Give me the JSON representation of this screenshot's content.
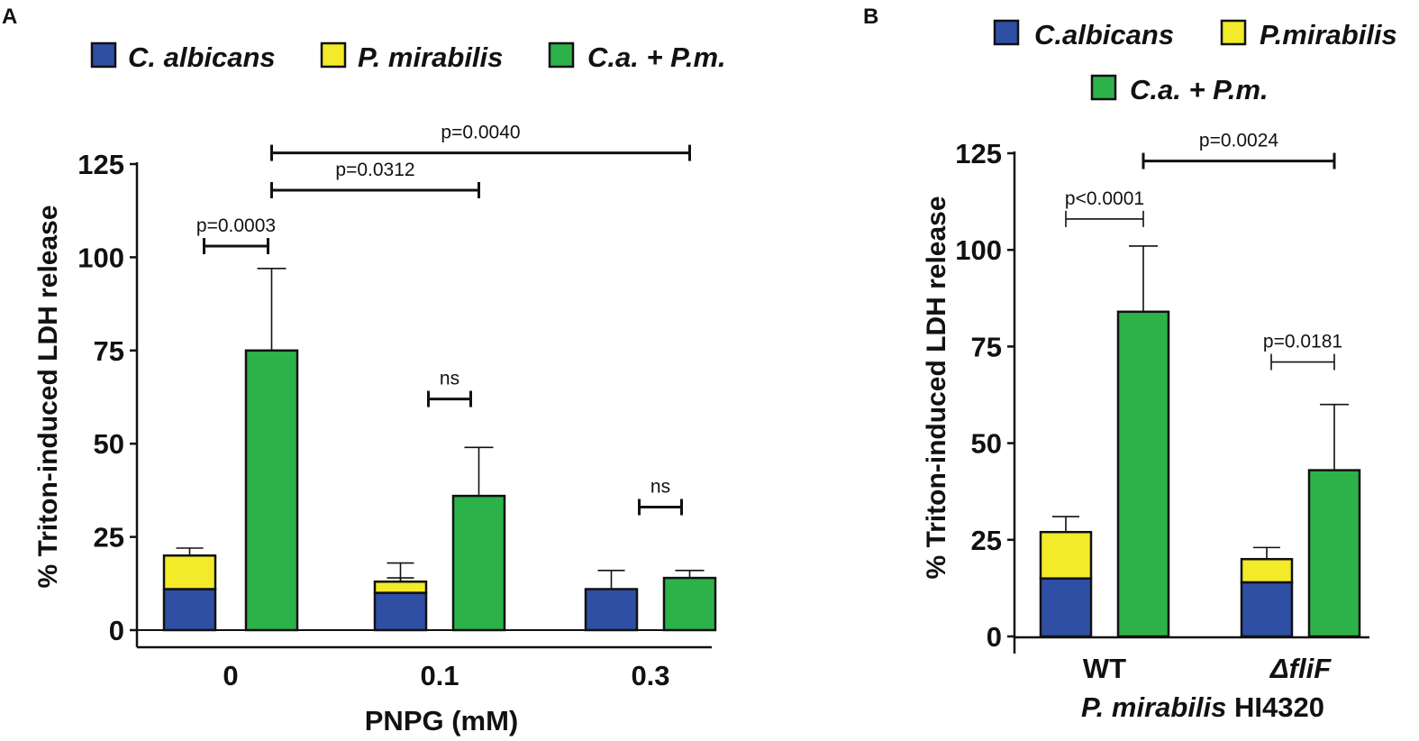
{
  "chart_data": [
    {
      "panel": "A",
      "type": "bar",
      "subtype": "stacked + grouped",
      "xlabel": "PNPG (mM)",
      "ylabel": "% Triton-induced LDH release",
      "ylim": [
        0,
        125
      ],
      "yticks": [
        "0",
        "25",
        "50",
        "75",
        "100",
        "125"
      ],
      "categories": [
        "0",
        "0.1",
        "0.3"
      ],
      "legend": [
        {
          "label": "C. albicans",
          "color": "#2e4fa3"
        },
        {
          "label": "P. mirabilis",
          "color": "#f3ea2a"
        },
        {
          "label": "C.a. + P.m.",
          "color": "#2db24a"
        }
      ],
      "stacked": {
        "series": [
          {
            "name": "C. albicans",
            "color": "#2e4fa3",
            "values": [
              11,
              10,
              11
            ],
            "errors": [
              8,
              8,
              5
            ]
          },
          {
            "name": "P. mirabilis",
            "color": "#f3ea2a",
            "values": [
              9,
              3,
              0
            ],
            "errors": [
              2,
              1,
              0
            ]
          }
        ]
      },
      "combined": {
        "name": "C.a. + P.m.",
        "color": "#2db24a",
        "values": [
          75,
          36,
          14
        ],
        "errors": [
          22,
          13,
          2
        ]
      },
      "annotations": [
        {
          "text": "p=0.0003",
          "from": "stack-0",
          "to": "combo-0",
          "y": 103
        },
        {
          "text": "p=0.0312",
          "from": "combo-0",
          "to": "combo-1",
          "y": 118
        },
        {
          "text": "p=0.0040",
          "from": "combo-0",
          "to": "combo-2",
          "y": 128
        },
        {
          "text": "ns",
          "from": "stack-1",
          "to": "combo-1",
          "y": 62
        },
        {
          "text": "ns",
          "from": "stack-2",
          "to": "combo-2",
          "y": 33
        }
      ]
    },
    {
      "panel": "B",
      "type": "bar",
      "subtype": "stacked + grouped",
      "title": "P. mirabilis HI4320",
      "ylabel": "% Triton-induced LDH release",
      "ylim": [
        0,
        125
      ],
      "yticks": [
        "0",
        "25",
        "50",
        "75",
        "100",
        "125"
      ],
      "categories": [
        "WT",
        "ΔfliF"
      ],
      "xlabel_italic": "P. mirabilis",
      "xlabel_plain": " HI4320",
      "legend": [
        {
          "label": "C.albicans",
          "color": "#2e4fa3"
        },
        {
          "label": "P.mirabilis",
          "color": "#f3ea2a"
        },
        {
          "label": "C.a. + P.m.",
          "color": "#2db24a"
        }
      ],
      "stacked": {
        "series": [
          {
            "name": "C.albicans",
            "color": "#2e4fa3",
            "values": [
              15,
              14
            ],
            "errors": [
              5,
              3
            ]
          },
          {
            "name": "P.mirabilis",
            "color": "#f3ea2a",
            "values": [
              12,
              6
            ],
            "errors": [
              4,
              3
            ]
          }
        ]
      },
      "combined": {
        "name": "C.a. + P.m.",
        "color": "#2db24a",
        "values": [
          84,
          43
        ],
        "errors": [
          17,
          17
        ]
      },
      "annotations": [
        {
          "text": "p<0.0001",
          "from": "stack-0",
          "to": "combo-0",
          "y": 108
        },
        {
          "text": "p=0.0024",
          "from": "combo-0",
          "to": "combo-1",
          "y": 123
        },
        {
          "text": "p=0.0181",
          "from": "combo-1-left",
          "to": "combo-1",
          "y": 71
        }
      ]
    }
  ]
}
